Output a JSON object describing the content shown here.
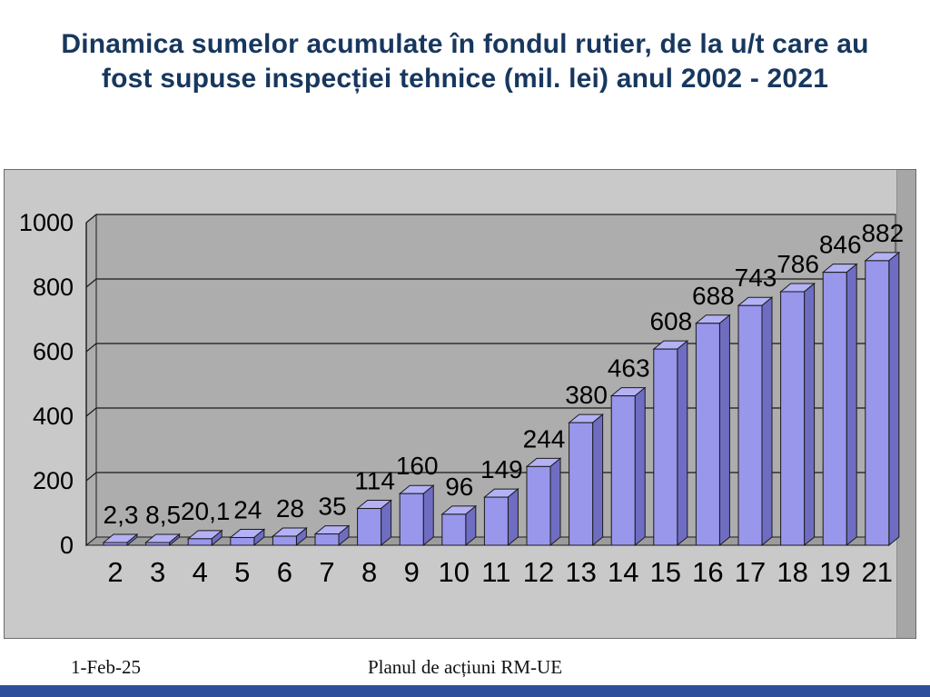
{
  "slide": {
    "title_line1": "Dinamica sumelor acumulate în fondul rutier, de la u/t care au",
    "title_line2": "fost supuse inspecției tehnice (mil. lei) anul 2002 - 2021",
    "title_color": "#17375E"
  },
  "footer": {
    "date": "1-Feb-25",
    "center_text": "Planul de acțiuni RM-UE",
    "bar_color": "#2E4E9C"
  },
  "chart_data": {
    "type": "bar",
    "style": "3d-column",
    "title": "",
    "xlabel": "",
    "ylabel": "",
    "categories": [
      "2",
      "3",
      "4",
      "5",
      "6",
      "7",
      "8",
      "9",
      "10",
      "11",
      "12",
      "13",
      "14",
      "15",
      "16",
      "17",
      "18",
      "19",
      "21"
    ],
    "values": [
      2.3,
      8.5,
      20.1,
      24,
      28,
      35,
      114,
      160,
      96,
      149,
      244,
      380,
      463,
      608,
      688,
      743,
      786,
      846,
      882
    ],
    "data_labels": [
      "2,3",
      "8,5",
      "20,1",
      "24",
      "28",
      "35",
      "114",
      "160",
      "96",
      "149",
      "244",
      "380",
      "463",
      "608",
      "688",
      "743",
      "786",
      "846",
      "882"
    ],
    "y_ticks": [
      0,
      200,
      400,
      600,
      800,
      1000
    ],
    "ylim": [
      0,
      1000
    ],
    "grid": true,
    "legend": "none",
    "bar_color": "#9897EC",
    "bar_top_color": "#B4B2F4",
    "bar_side_color": "#6F6DC2",
    "wall_color": "#ADADAD",
    "floor_color": "#9C9C9C",
    "chart_bg": "#C9C9C9",
    "outline_color": "#1a1a1a"
  }
}
